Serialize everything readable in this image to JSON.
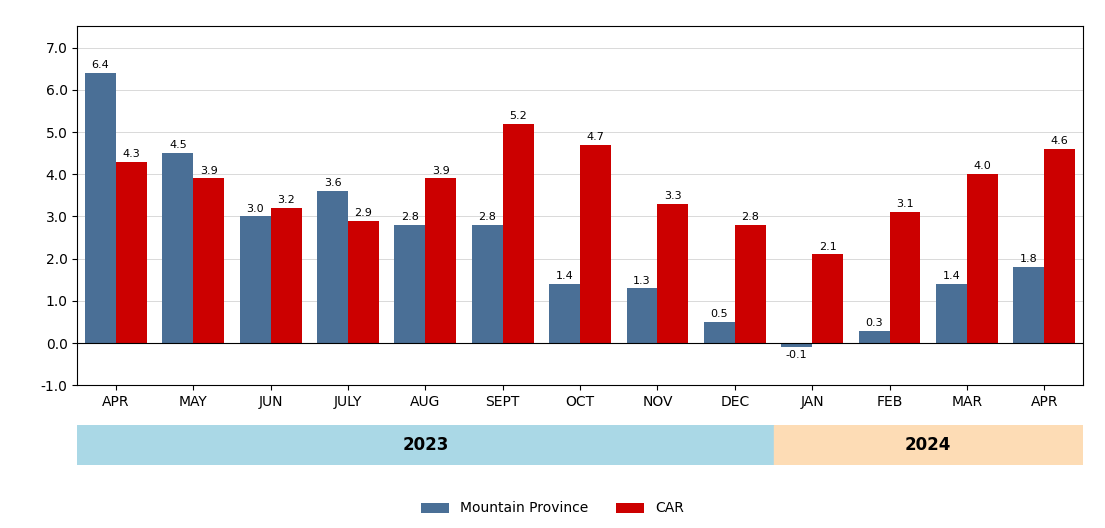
{
  "chart_data": {
    "type": "bar",
    "categories": [
      "APR",
      "MAY",
      "JUN",
      "JULY",
      "AUG",
      "SEPT",
      "OCT",
      "NOV",
      "DEC",
      "JAN",
      "FEB",
      "MAR",
      "APR"
    ],
    "series": [
      {
        "name": "Mountain Province",
        "color": "#4a6f96",
        "values": [
          6.4,
          4.5,
          3.0,
          3.6,
          2.8,
          2.8,
          1.4,
          1.3,
          0.5,
          -0.1,
          0.3,
          1.4,
          1.8
        ]
      },
      {
        "name": "CAR",
        "color": "#cc0000",
        "values": [
          4.3,
          3.9,
          3.2,
          2.9,
          3.9,
          5.2,
          4.7,
          3.3,
          2.8,
          2.1,
          3.1,
          4.0,
          4.6
        ]
      }
    ],
    "ylim": [
      -1.0,
      7.5
    ],
    "yticks": [
      {
        "value": -1.0,
        "label": "-1.0"
      },
      {
        "value": 0,
        "label": "0.0"
      },
      {
        "value": 1,
        "label": "1.0"
      },
      {
        "value": 2,
        "label": "2.0"
      },
      {
        "value": 3,
        "label": "3.0"
      },
      {
        "value": 4,
        "label": "4.0"
      },
      {
        "value": 5,
        "label": "5.0"
      },
      {
        "value": 6,
        "label": "6.0"
      },
      {
        "value": 7,
        "label": "7.0"
      }
    ],
    "year_bands": [
      {
        "label": "2023",
        "first": 0,
        "last": 8,
        "color": "#aad8e6"
      },
      {
        "label": "2024",
        "first": 9,
        "last": 12,
        "color": "#fddcb5"
      }
    ],
    "grid": true,
    "legend": "lower center",
    "data_labels": true
  }
}
